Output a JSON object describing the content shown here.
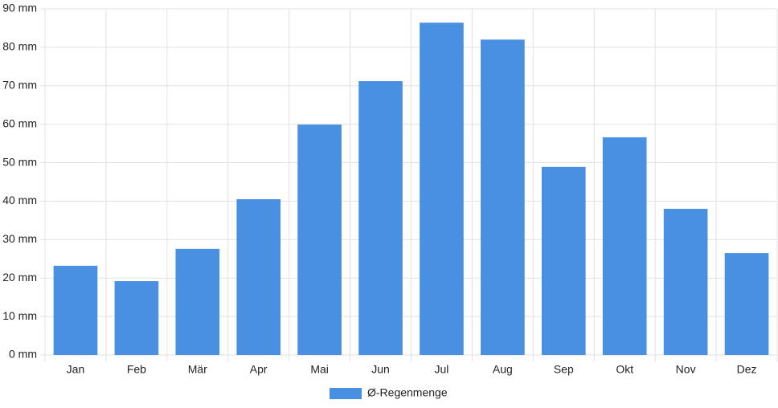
{
  "chart_data": {
    "type": "bar",
    "categories": [
      "Jan",
      "Feb",
      "Mär",
      "Apr",
      "Mai",
      "Jun",
      "Jul",
      "Aug",
      "Sep",
      "Okt",
      "Nov",
      "Dez"
    ],
    "series": [
      {
        "name": "Ø-Regenmenge",
        "color": "#4a90e2",
        "values": [
          23.2,
          19.2,
          27.6,
          40.5,
          59.9,
          71.2,
          86.4,
          82.0,
          48.9,
          56.6,
          38.0,
          26.5
        ]
      }
    ],
    "ylim": [
      0,
      90
    ],
    "yticks": [
      {
        "value": 0,
        "label": "0 mm"
      },
      {
        "value": 10,
        "label": "10 mm"
      },
      {
        "value": 20,
        "label": "20 mm"
      },
      {
        "value": 30,
        "label": "30 mm"
      },
      {
        "value": 40,
        "label": "40 mm"
      },
      {
        "value": 50,
        "label": "50 mm"
      },
      {
        "value": 60,
        "label": "60 mm"
      },
      {
        "value": 70,
        "label": "70 mm"
      },
      {
        "value": 80,
        "label": "80 mm"
      },
      {
        "value": 90,
        "label": "90 mm"
      }
    ],
    "grid": true,
    "legend": "bottom"
  }
}
